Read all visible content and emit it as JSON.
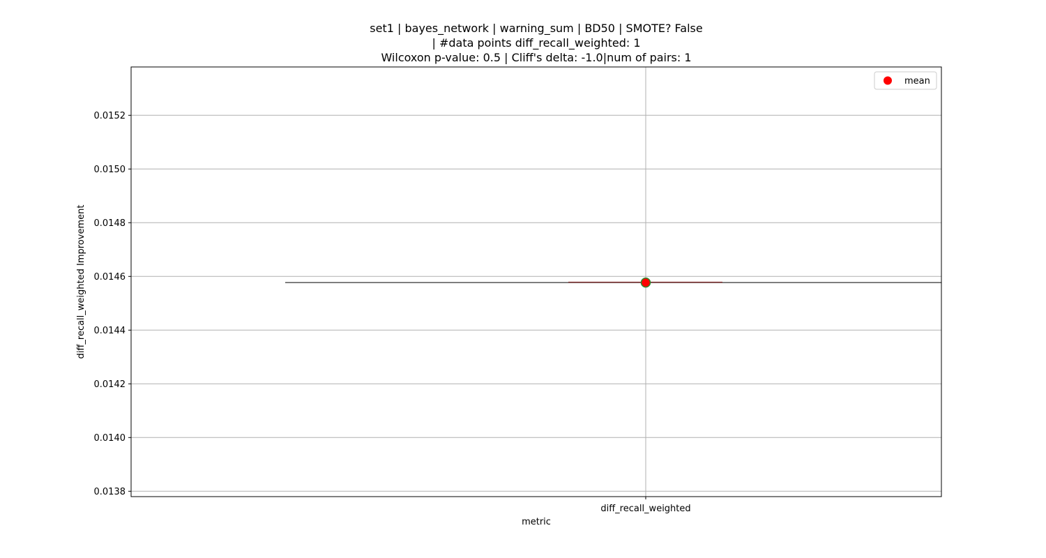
{
  "chart_data": {
    "type": "box",
    "title_lines": [
      "set1 | bayes_network | warning_sum | BD50 | SMOTE? False",
      "| #data points diff_recall_weighted: 1",
      "Wilcoxon p-value: 0.5 | Cliff's delta: -1.0|num of pairs: 1"
    ],
    "xlabel": "metric",
    "ylabel": "diff_recall_weighted Improvement",
    "categories": [
      "diff_recall_weighted"
    ],
    "ylim": [
      0.01378,
      0.01538
    ],
    "yticks": [
      0.0138,
      0.014,
      0.0142,
      0.0144,
      0.0146,
      0.0148,
      0.015,
      0.0152
    ],
    "ytick_labels": [
      "0.0138",
      "0.0140",
      "0.0142",
      "0.0144",
      "0.0146",
      "0.0148",
      "0.0150",
      "0.0152"
    ],
    "series": [
      {
        "values": [
          0.014577
        ],
        "mean": 0.014577,
        "median": 0.014577
      }
    ],
    "grid": true,
    "legend": {
      "placement": "top-right",
      "entries": [
        "mean"
      ]
    },
    "colors": {
      "mean_marker": "#ff0000",
      "mean_edge": "#2e8b2e",
      "box_line": "#555555",
      "median_line": "#8b3a3a",
      "grid": "#b0b0b0"
    }
  }
}
